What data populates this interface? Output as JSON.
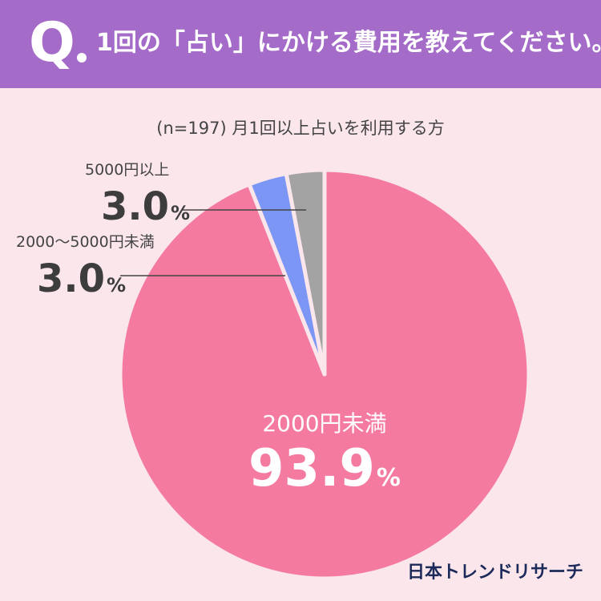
{
  "header": {
    "q_mark": "Q",
    "question": "1回の「占い」にかける費用を教えてください。"
  },
  "chart_data": {
    "type": "pie",
    "title": "(n=197) 月1回以上占いを利用する方",
    "start": "top",
    "direction": "counter-clockwise",
    "slices": [
      {
        "label": "2000円未満",
        "value": 93.9,
        "display": "93.9",
        "color": "#f47aa0"
      },
      {
        "label": "2000〜5000円未満",
        "value": 3.0,
        "display": "3.0",
        "color": "#7b96f4"
      },
      {
        "label": "5000円以上",
        "value": 3.0,
        "display": "3.0",
        "color": "#a3a3a3"
      }
    ],
    "unit": "%"
  },
  "brand": "日本トレンドリサーチ"
}
